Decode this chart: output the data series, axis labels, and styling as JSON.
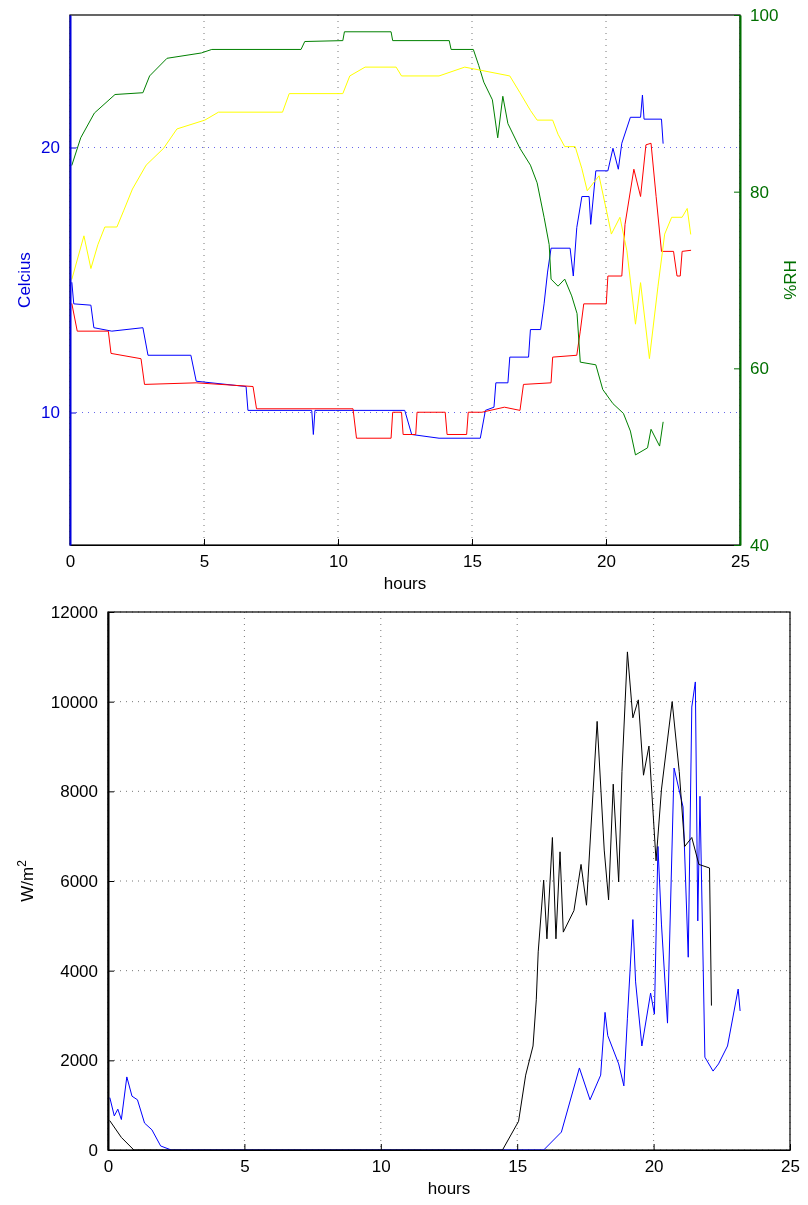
{
  "chart_data": [
    {
      "type": "line",
      "xlabel": "hours",
      "ylabel": "Celcius",
      "y2label": "%RH",
      "xlim": [
        0,
        25
      ],
      "xticks": [
        0,
        5,
        10,
        15,
        20,
        25
      ],
      "ylim": [
        5,
        25
      ],
      "yticks": [
        10,
        20
      ],
      "y2lim": [
        40,
        100
      ],
      "y2ticks": [
        40,
        60,
        80,
        100
      ],
      "grid": true,
      "series": [
        {
          "color": "#0000ff",
          "x": [
            0.07,
            0.14,
            0.78,
            0.89,
            1.56,
            2.72,
            2.91,
            4.51,
            4.71,
            6.57,
            6.64,
            9.02,
            9.08,
            9.14,
            9.92,
            12.49,
            12.75,
            13.77,
            15.31,
            15.5,
            15.82,
            15.89,
            16.34,
            16.41,
            17.11,
            17.18,
            17.56,
            17.69,
            17.82,
            17.95,
            18.66,
            18.78,
            18.91,
            19.1,
            19.37,
            19.43,
            19.62,
            20.07,
            20.26,
            20.46,
            20.59,
            20.91,
            21.29,
            21.36,
            21.42,
            22.07,
            22.13
          ],
          "values": [
            14.9,
            14.1,
            14.05,
            13.2,
            13.07,
            13.2,
            12.16,
            12.16,
            11.18,
            10.98,
            10.08,
            10.08,
            9.17,
            10.08,
            10.08,
            10.08,
            9.17,
            9.03,
            9.03,
            10.08,
            10.2,
            11.12,
            11.12,
            12.09,
            12.09,
            13.13,
            13.13,
            14.1,
            15.3,
            16.2,
            16.2,
            15.15,
            16.98,
            18.15,
            18.15,
            17.1,
            19.12,
            19.12,
            19.97,
            19.18,
            20.16,
            21.14,
            21.14,
            21.98,
            21.07,
            21.07,
            20.16
          ]
        },
        {
          "color": "#ff0000",
          "x": [
            0.07,
            0.27,
            1.43,
            1.53,
            2.65,
            2.78,
            4.71,
            6.83,
            6.96,
            10.56,
            10.69,
            11.98,
            12.04,
            12.37,
            12.43,
            12.9,
            12.95,
            14.0,
            14.07,
            14.8,
            14.86,
            15.37,
            16.21,
            16.79,
            16.92,
            17.95,
            18.01,
            18.91,
            19.04,
            19.17,
            20.01,
            20.07,
            20.59,
            20.71,
            21.04,
            21.29,
            21.49,
            21.68,
            21.87,
            22.07,
            22.52,
            22.65,
            22.77,
            22.84,
            23.16
          ],
          "values": [
            14.1,
            13.07,
            13.07,
            12.23,
            12.03,
            11.06,
            11.12,
            10.98,
            10.14,
            10.14,
            9.03,
            9.03,
            10.01,
            10.01,
            9.17,
            9.17,
            10.01,
            10.01,
            9.17,
            9.17,
            10.01,
            10.01,
            10.2,
            10.08,
            11.06,
            11.12,
            12.09,
            12.16,
            13.07,
            14.1,
            14.1,
            15.15,
            15.15,
            17.1,
            19.18,
            18.15,
            20.1,
            20.16,
            18.15,
            16.08,
            16.08,
            15.15,
            15.15,
            16.08,
            16.12
          ]
        },
        {
          "color": "#008000",
          "axis": "y2",
          "x": [
            0.07,
            0.4,
            0.91,
            1.68,
            2.72,
            2.97,
            3.62,
            4.9,
            5.29,
            8.62,
            8.76,
            10.18,
            10.24,
            11.98,
            12.04,
            14.15,
            14.22,
            15.05,
            15.25,
            15.44,
            15.76,
            15.96,
            16.15,
            16.34,
            16.79,
            17.18,
            17.43,
            17.69,
            17.88,
            17.95,
            18.21,
            18.46,
            18.72,
            18.92,
            19.04,
            19.62,
            19.88,
            20.26,
            20.65,
            20.91,
            21.1,
            21.55,
            21.68,
            22.0,
            22.13
          ],
          "values": [
            83,
            86.1,
            88.9,
            91,
            91.2,
            93.1,
            95.1,
            95.7,
            96.1,
            96.1,
            97,
            97.1,
            98.1,
            98.1,
            97.1,
            97.1,
            96.1,
            96.1,
            94.3,
            92.4,
            90.4,
            86.1,
            90.8,
            87.7,
            84.9,
            83,
            81,
            77.1,
            74,
            70.1,
            69.3,
            70.1,
            68.2,
            66.2,
            60.7,
            60.4,
            57.6,
            56,
            54.9,
            52.9,
            50.2,
            51,
            53.1,
            51.2,
            53.9
          ]
        },
        {
          "color": "#ffff00",
          "axis": "y2",
          "x": [
            0.07,
            0.52,
            0.78,
            1.04,
            1.3,
            1.75,
            2.01,
            2.33,
            2.84,
            3.49,
            3.99,
            5.03,
            5.54,
            7.93,
            8.18,
            10.18,
            10.44,
            11.01,
            12.17,
            12.37,
            13.77,
            14.73,
            16.41,
            16.79,
            17.18,
            17.43,
            18.01,
            18.21,
            18.46,
            18.85,
            19.1,
            19.3,
            19.74,
            20.07,
            20.2,
            20.52,
            20.78,
            21.1,
            21.29,
            21.62,
            21.94,
            22.19,
            22.45,
            22.84,
            23.03,
            23.16
          ],
          "values": [
            70.1,
            75,
            71.3,
            74,
            76,
            76,
            77.9,
            80.3,
            83,
            84.9,
            87.1,
            88.1,
            89,
            89,
            91.1,
            91.1,
            93.1,
            94.1,
            94.1,
            93.1,
            93.1,
            94.1,
            93.1,
            91.2,
            89.2,
            88.1,
            88.1,
            86.5,
            85.1,
            85.1,
            82.6,
            80.1,
            81.8,
            77.1,
            75.2,
            77.1,
            73.3,
            65,
            69.7,
            61.1,
            69.3,
            75.2,
            77.1,
            77.1,
            78.1,
            75.2
          ]
        }
      ]
    },
    {
      "type": "line",
      "xlabel": "hours",
      "ylabel": "W/m$^{2}$",
      "xlim": [
        0,
        25
      ],
      "xticks": [
        0,
        5,
        10,
        15,
        20,
        25
      ],
      "ylim": [
        0,
        12000
      ],
      "yticks": [
        0,
        2000,
        4000,
        6000,
        8000,
        10000,
        12000
      ],
      "grid": true,
      "series": [
        {
          "color": "#0000ff",
          "x": [
            0.07,
            0.23,
            0.36,
            0.49,
            0.69,
            0.88,
            1.08,
            1.34,
            1.61,
            1.93,
            2.32,
            15.97,
            16.62,
            17.28,
            17.67,
            18.06,
            18.22,
            18.32,
            18.72,
            18.91,
            19.04,
            19.24,
            19.34,
            19.57,
            19.89,
            20.03,
            20.16,
            20.29,
            20.51,
            20.75,
            21.08,
            21.27,
            21.4,
            21.53,
            21.62,
            21.7,
            21.88,
            22.18,
            22.38,
            22.71,
            23.1,
            23.17
          ],
          "values": [
            1160,
            760,
            910,
            680,
            1630,
            1200,
            1120,
            600,
            450,
            90,
            0,
            0,
            400,
            1830,
            1120,
            1670,
            3070,
            2550,
            1920,
            1430,
            2940,
            5140,
            3750,
            2320,
            3500,
            3030,
            6770,
            5020,
            2830,
            8520,
            7650,
            4300,
            9880,
            10440,
            5110,
            7890,
            2070,
            1760,
            1920,
            2320,
            3590,
            3110
          ]
        },
        {
          "color": "#000000",
          "x": [
            0.07,
            0.49,
            0.95,
            14.46,
            15.05,
            15.31,
            15.58,
            15.7,
            15.77,
            15.97,
            16.09,
            16.29,
            16.42,
            16.57,
            16.69,
            17.08,
            17.34,
            17.54,
            17.93,
            18.19,
            18.35,
            18.52,
            18.72,
            18.84,
            19.04,
            19.24,
            19.44,
            19.63,
            19.83,
            20.09,
            20.29,
            20.68,
            20.94,
            21.14,
            21.4,
            21.66,
            22.05,
            22.12
          ],
          "values": [
            650,
            280,
            0,
            0,
            640,
            1670,
            2320,
            3350,
            4420,
            6020,
            4710,
            6970,
            4710,
            6650,
            4860,
            5340,
            6370,
            5460,
            9560,
            6690,
            5580,
            8160,
            5980,
            8440,
            11110,
            9640,
            10040,
            8360,
            9010,
            6450,
            8050,
            10000,
            8440,
            6770,
            6970,
            6370,
            6290,
            3230
          ]
        }
      ]
    }
  ]
}
